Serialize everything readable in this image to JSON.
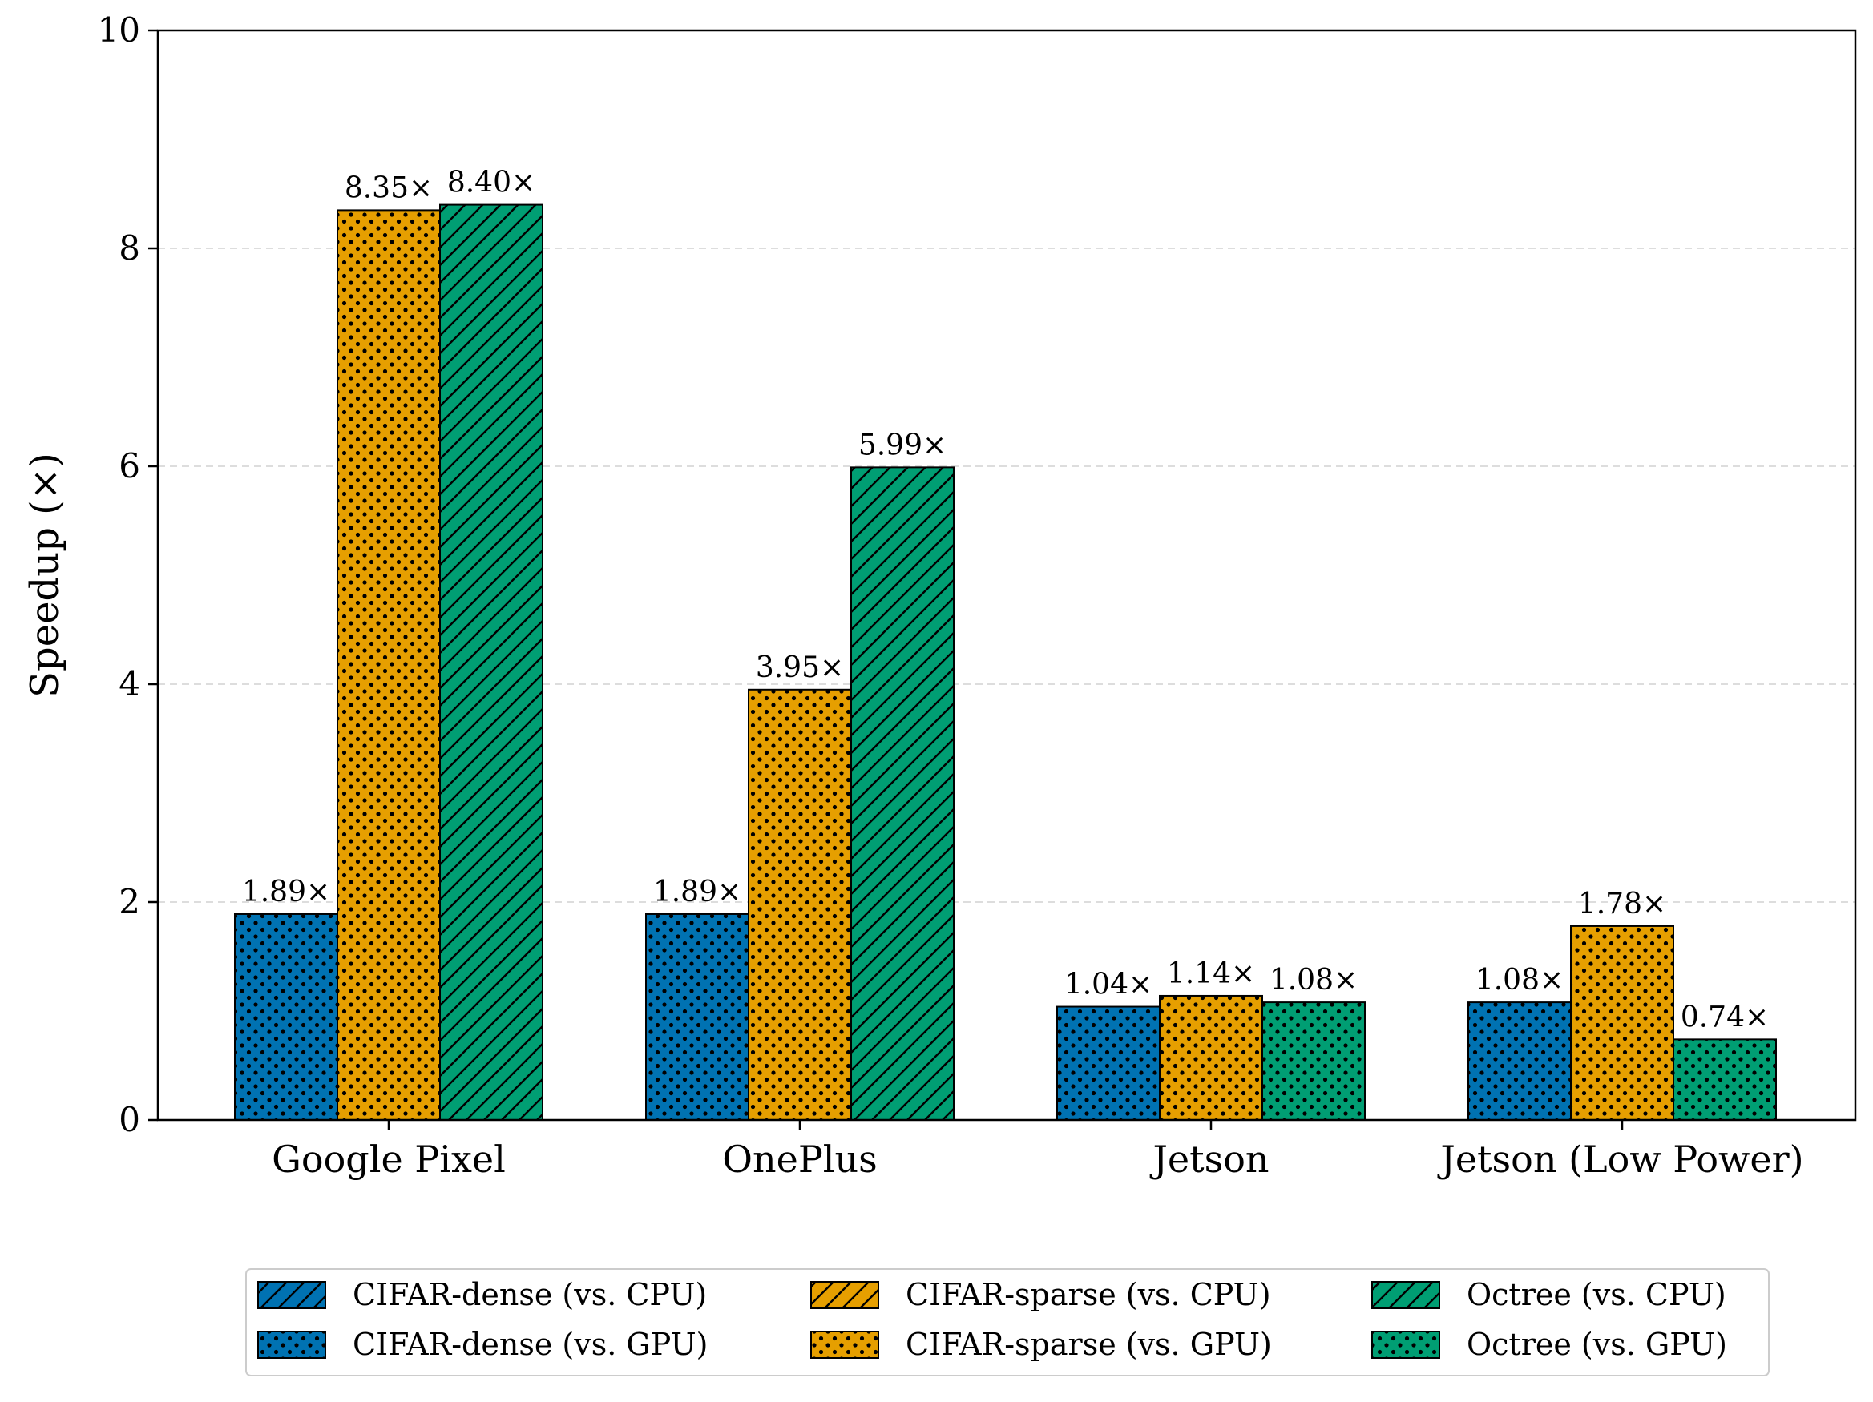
{
  "chart_data": {
    "type": "bar",
    "ylabel": "Speedup (×)",
    "xlabel": "",
    "ylim": [
      0,
      10
    ],
    "yticks": [
      0,
      2,
      4,
      6,
      8,
      10
    ],
    "grid": "y-dashed",
    "categories": [
      "Google Pixel",
      "OnePlus",
      "Jetson",
      "Jetson (Low Power)"
    ],
    "bars": [
      [
        {
          "series": "CIFAR-dense (vs. GPU)",
          "value": 1.89,
          "label": "1.89×"
        },
        {
          "series": "CIFAR-sparse (vs. GPU)",
          "value": 8.35,
          "label": "8.35×"
        },
        {
          "series": "Octree (vs. CPU)",
          "value": 8.4,
          "label": "8.40×"
        }
      ],
      [
        {
          "series": "CIFAR-dense (vs. GPU)",
          "value": 1.89,
          "label": "1.89×"
        },
        {
          "series": "CIFAR-sparse (vs. GPU)",
          "value": 3.95,
          "label": "3.95×"
        },
        {
          "series": "Octree (vs. CPU)",
          "value": 5.99,
          "label": "5.99×"
        }
      ],
      [
        {
          "series": "CIFAR-dense (vs. GPU)",
          "value": 1.04,
          "label": "1.04×"
        },
        {
          "series": "CIFAR-sparse (vs. GPU)",
          "value": 1.14,
          "label": "1.14×"
        },
        {
          "series": "Octree (vs. GPU)",
          "value": 1.08,
          "label": "1.08×"
        }
      ],
      [
        {
          "series": "CIFAR-dense (vs. GPU)",
          "value": 1.08,
          "label": "1.08×"
        },
        {
          "series": "CIFAR-sparse (vs. GPU)",
          "value": 1.78,
          "label": "1.78×"
        },
        {
          "series": "Octree (vs. GPU)",
          "value": 0.74,
          "label": "0.74×"
        }
      ]
    ],
    "legend": {
      "placement": "bottom-center",
      "entries": [
        {
          "label": "CIFAR-dense (vs. CPU)",
          "color": "#0072B2",
          "pattern": "hatch"
        },
        {
          "label": "CIFAR-dense (vs. GPU)",
          "color": "#0072B2",
          "pattern": "dots"
        },
        {
          "label": "CIFAR-sparse (vs. CPU)",
          "color": "#E69F00",
          "pattern": "hatch"
        },
        {
          "label": "CIFAR-sparse (vs. GPU)",
          "color": "#E69F00",
          "pattern": "dots"
        },
        {
          "label": "Octree (vs. CPU)",
          "color": "#009E73",
          "pattern": "hatch"
        },
        {
          "label": "Octree (vs. GPU)",
          "color": "#009E73",
          "pattern": "dots"
        }
      ]
    },
    "colors": {
      "cifar_dense": "#0072B2",
      "cifar_sparse": "#E69F00",
      "octree": "#009E73"
    }
  }
}
